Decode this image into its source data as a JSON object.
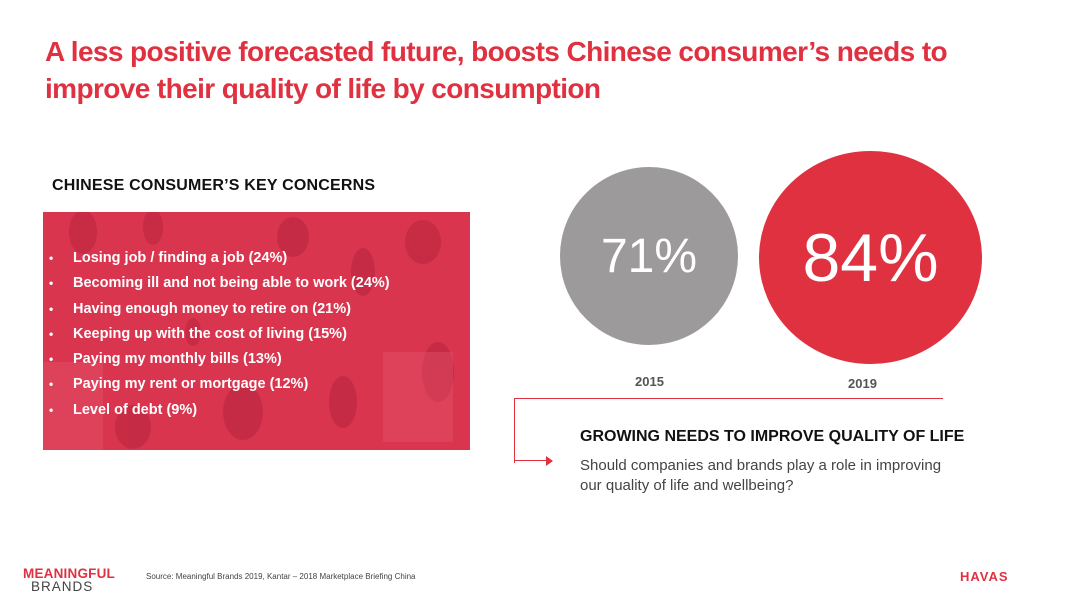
{
  "title": "A less positive forecasted future, boosts Chinese consumer’s needs to improve their quality of life by consumption",
  "concerns": {
    "heading": "CHINESE CONSUMER’S KEY CONCERNS",
    "bullet": "•",
    "items": [
      "Losing job / finding a job (24%)",
      "Becoming ill and not being able to work (24%)",
      "Having enough money to retire on (21%)",
      "Keeping up with the cost of living (15%)",
      "Paying my monthly bills (13%)",
      "Paying my rent or mortgage (12%)",
      "Level of debt (9%)"
    ],
    "panel_color": "#d9354f"
  },
  "stats": [
    {
      "year": "2015",
      "value": "71%",
      "color": "#9c9a9b"
    },
    {
      "year": "2019",
      "value": "84%",
      "color": "#e03141"
    }
  ],
  "growing": {
    "heading": "GROWING NEEDS TO IMPROVE QUALITY OF LIFE",
    "question": "Should companies and brands play a role in improving our quality of life and wellbeing?"
  },
  "footer": {
    "logo_line1": "MEANINGFUL",
    "logo_line2": "BRANDS",
    "source": "Source: Meaningful Brands 2019, Kantar – 2018 Marketplace Briefing China",
    "havas": "HAVAS"
  },
  "colors": {
    "accent": "#e03141",
    "grey": "#9c9a9b"
  }
}
